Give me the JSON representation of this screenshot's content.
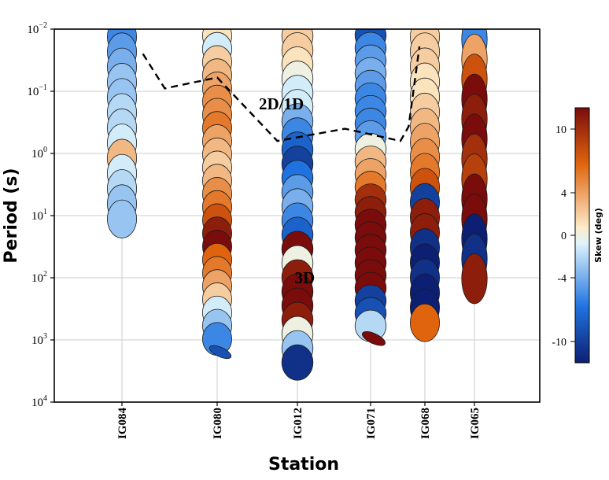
{
  "chart_data": {
    "type": "scatter",
    "xlabel": "Station",
    "ylabel": "Period (s)",
    "y_scale": "log",
    "y_inverted": true,
    "ylim": [
      0.01,
      10000
    ],
    "y_tick_labels": [
      {
        "base": "10",
        "exp": "−2",
        "value": 0.01
      },
      {
        "base": "10",
        "exp": "−1",
        "value": 0.1
      },
      {
        "base": "10",
        "exp": "0",
        "value": 1
      },
      {
        "base": "10",
        "exp": "1",
        "value": 10
      },
      {
        "base": "10",
        "exp": "2",
        "value": 100
      },
      {
        "base": "10",
        "exp": "3",
        "value": 1000
      },
      {
        "base": "10",
        "exp": "4",
        "value": 10000
      }
    ],
    "categories": [
      "IG084",
      "IG080",
      "IG012",
      "IG071",
      "IG068",
      "IG065"
    ],
    "grid": true,
    "annotations": [
      {
        "text": "2D/1D",
        "x_station": 1.8,
        "period": 0.16
      },
      {
        "text": "3D",
        "x_station": 2.1,
        "period": 100
      }
    ],
    "boundary_line": {
      "style": "dashed",
      "points": [
        {
          "x_station": 0.22,
          "period": 0.025
        },
        {
          "x_station": 0.45,
          "period": 0.09
        },
        {
          "x_station": 1.0,
          "period": 0.06
        },
        {
          "x_station": 1.75,
          "period": 0.63
        },
        {
          "x_station": 2.65,
          "period": 0.4
        },
        {
          "x_station": 3.55,
          "period": 0.63
        },
        {
          "x_station": 3.7,
          "period": 0.37
        },
        {
          "x_station": 3.9,
          "period": 0.019
        }
      ]
    },
    "colorbar": {
      "label": "Skew (deg)",
      "ticks": [
        10,
        4,
        0,
        -4,
        -10
      ],
      "tick_labels": [
        "10",
        "4",
        "0",
        "-4",
        "-10"
      ],
      "range": [
        -12,
        12
      ],
      "colors": [
        "#0d1f72",
        "#1f73e0",
        "#dff4fb",
        "#fcebc9",
        "#e0640e",
        "#7a0c0c"
      ]
    },
    "series": [
      {
        "station": "IG084",
        "from_period": 0.01,
        "to_period": 15,
        "skew": [
          -6,
          -5,
          -4,
          -3,
          -3,
          -2,
          -2,
          -1,
          3,
          -1,
          -2,
          -3,
          -3
        ],
        "size": 0.55
      },
      {
        "station": "IG080",
        "from_period": 0.01,
        "to_period": 2000,
        "skew": [
          1,
          -1,
          2,
          3,
          4,
          5,
          5,
          6,
          4,
          3,
          2,
          3,
          5,
          6,
          8,
          11,
          12,
          7,
          6,
          4,
          2,
          -1,
          -3,
          -6,
          -9
        ],
        "size": 0.55
      },
      {
        "station": "IG012",
        "from_period": 0.01,
        "to_period": 3000,
        "skew": [
          2,
          2,
          1,
          0,
          -1,
          -1,
          -4,
          -6,
          -8,
          -10,
          -7,
          -5,
          -4,
          -6,
          -8,
          12,
          0,
          11,
          12,
          12,
          11,
          0,
          -3,
          -11
        ],
        "size": 0.65
      },
      {
        "station": "IG071",
        "from_period": 0.01,
        "to_period": 1200,
        "skew": [
          -9,
          -6,
          -5,
          -4,
          -5,
          -6,
          -6,
          -6,
          -5,
          0,
          3,
          4,
          6,
          10,
          11,
          12,
          12,
          12,
          12,
          12,
          12,
          -10,
          -9,
          -2,
          12
        ],
        "size": 0.65
      },
      {
        "station": "IG068",
        "from_period": 0.01,
        "to_period": 700,
        "skew": [
          2,
          2,
          2,
          1,
          1,
          2,
          3,
          4,
          5,
          6,
          8,
          -10,
          11,
          11,
          -11,
          -12,
          -11,
          -12,
          -12,
          7
        ],
        "size": 0.55
      },
      {
        "station": "IG065",
        "from_period": 0.01,
        "to_period": 150,
        "skew": [
          -6,
          4,
          8,
          12,
          11,
          12,
          10,
          9,
          12,
          12,
          -12,
          -11,
          11
        ],
        "size": 0.35
      }
    ]
  }
}
